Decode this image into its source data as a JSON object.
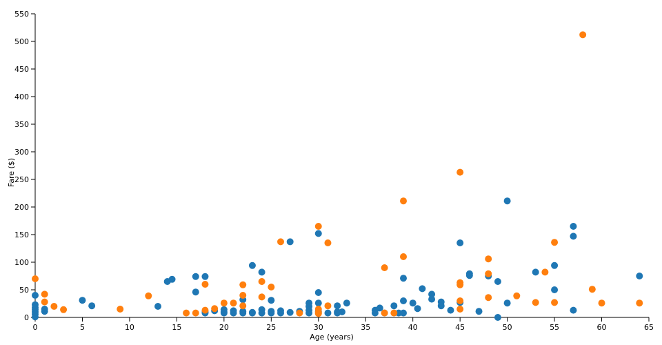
{
  "chart_data": {
    "type": "scatter",
    "xlabel": "Age (years)",
    "ylabel": "Fare ($)",
    "xlim": [
      0,
      65
    ],
    "ylim": [
      0,
      550
    ],
    "xticks": [
      0,
      5,
      10,
      15,
      20,
      25,
      30,
      35,
      40,
      45,
      50,
      55,
      60,
      65
    ],
    "yticks": [
      0,
      50,
      100,
      150,
      200,
      250,
      300,
      350,
      400,
      450,
      500,
      550
    ],
    "grid": false,
    "legend": "none",
    "series": [
      {
        "color": "#1f77b4",
        "points": [
          [
            0,
            40
          ],
          [
            0,
            23
          ],
          [
            0,
            18
          ],
          [
            0,
            14
          ],
          [
            0,
            10
          ],
          [
            0,
            6
          ],
          [
            0,
            1
          ],
          [
            1,
            11
          ],
          [
            1,
            15
          ],
          [
            5,
            31
          ],
          [
            6,
            21
          ],
          [
            13,
            20
          ],
          [
            14,
            65
          ],
          [
            14.5,
            69
          ],
          [
            17,
            74
          ],
          [
            17,
            46
          ],
          [
            18,
            74
          ],
          [
            18,
            10
          ],
          [
            18,
            8
          ],
          [
            19,
            12
          ],
          [
            20,
            8
          ],
          [
            20,
            10
          ],
          [
            20,
            14
          ],
          [
            21,
            8
          ],
          [
            21,
            12
          ],
          [
            22,
            32
          ],
          [
            22,
            8
          ],
          [
            22,
            11
          ],
          [
            23,
            94
          ],
          [
            23,
            9
          ],
          [
            23,
            8
          ],
          [
            24,
            82
          ],
          [
            24,
            8
          ],
          [
            24,
            14
          ],
          [
            25,
            31
          ],
          [
            25,
            8
          ],
          [
            25,
            11
          ],
          [
            26,
            8
          ],
          [
            26,
            12
          ],
          [
            27,
            137
          ],
          [
            27,
            9
          ],
          [
            28,
            11
          ],
          [
            29,
            26
          ],
          [
            29,
            20
          ],
          [
            29,
            8
          ],
          [
            29,
            13
          ],
          [
            30,
            152
          ],
          [
            30,
            45
          ],
          [
            30,
            26
          ],
          [
            30,
            11
          ],
          [
            30,
            8
          ],
          [
            31,
            8
          ],
          [
            32,
            8
          ],
          [
            32,
            21
          ],
          [
            32,
            10
          ],
          [
            32.5,
            10
          ],
          [
            33,
            26
          ],
          [
            36,
            13
          ],
          [
            36,
            8
          ],
          [
            36.5,
            17
          ],
          [
            37,
            8
          ],
          [
            38,
            21
          ],
          [
            38.5,
            8
          ],
          [
            39,
            71
          ],
          [
            39,
            30
          ],
          [
            39,
            8
          ],
          [
            40,
            26
          ],
          [
            40.5,
            16
          ],
          [
            41,
            52
          ],
          [
            42,
            42
          ],
          [
            42,
            33
          ],
          [
            43,
            28
          ],
          [
            43,
            21
          ],
          [
            44,
            13
          ],
          [
            45,
            135
          ],
          [
            45,
            27
          ],
          [
            46,
            79
          ],
          [
            46,
            76
          ],
          [
            47,
            11
          ],
          [
            48,
            75
          ],
          [
            49,
            65
          ],
          [
            49,
            0
          ],
          [
            50,
            211
          ],
          [
            50,
            26
          ],
          [
            53,
            82
          ],
          [
            55,
            94
          ],
          [
            55,
            50
          ],
          [
            57,
            165
          ],
          [
            57,
            147
          ],
          [
            57,
            13
          ],
          [
            64,
            75
          ]
        ]
      },
      {
        "color": "#ff7f0e",
        "points": [
          [
            0,
            70
          ],
          [
            1,
            42
          ],
          [
            1,
            28
          ],
          [
            2,
            20
          ],
          [
            3,
            14
          ],
          [
            9,
            15
          ],
          [
            12,
            39
          ],
          [
            16,
            8
          ],
          [
            17,
            8
          ],
          [
            18,
            60
          ],
          [
            18,
            13
          ],
          [
            19,
            16
          ],
          [
            20,
            26
          ],
          [
            21,
            26
          ],
          [
            22,
            59
          ],
          [
            22,
            40
          ],
          [
            22,
            21
          ],
          [
            24,
            65
          ],
          [
            24,
            37
          ],
          [
            25,
            55
          ],
          [
            26,
            137
          ],
          [
            28,
            8
          ],
          [
            30,
            165
          ],
          [
            30,
            15
          ],
          [
            30,
            9
          ],
          [
            30,
            7
          ],
          [
            31,
            135
          ],
          [
            31,
            21
          ],
          [
            37,
            90
          ],
          [
            37,
            8
          ],
          [
            38,
            8
          ],
          [
            39,
            211
          ],
          [
            39,
            110
          ],
          [
            45,
            263
          ],
          [
            45,
            63
          ],
          [
            45,
            59
          ],
          [
            45,
            30
          ],
          [
            45,
            15
          ],
          [
            48,
            106
          ],
          [
            48,
            79
          ],
          [
            48,
            36
          ],
          [
            51,
            39
          ],
          [
            53,
            27
          ],
          [
            54,
            82
          ],
          [
            55,
            136
          ],
          [
            55,
            27
          ],
          [
            58,
            512
          ],
          [
            59,
            51
          ],
          [
            60,
            26
          ],
          [
            64,
            26
          ]
        ]
      }
    ]
  }
}
